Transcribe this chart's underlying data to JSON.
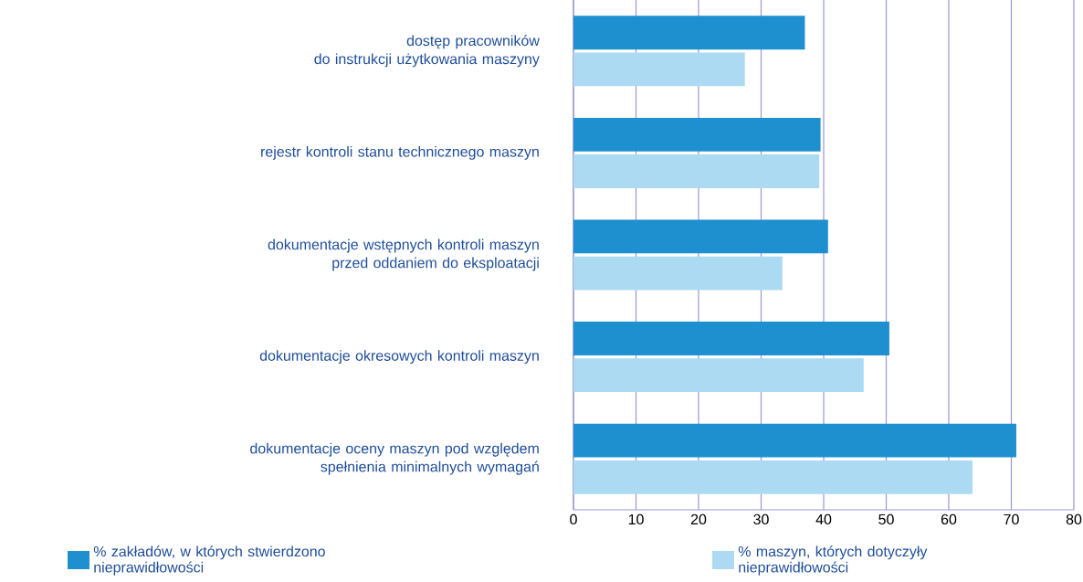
{
  "chart_data": {
    "type": "bar",
    "orientation": "horizontal",
    "categories": [
      "dostęp pracowników\ndo instrukcji użytkowania maszyny",
      "rejestr kontroli stanu technicznego maszyn",
      "dokumentacje wstępnych kontroli maszyn\nprzed oddaniem do eksploatacji",
      "dokumentacje okresowych kontroli maszyn",
      "dokumentacje oceny maszyn pod względem\nspełnienia minimalnych wymagań"
    ],
    "series": [
      {
        "name": "% zakładów, w których stwierdzono nieprawidłowości",
        "color": "#1e90d0",
        "values": [
          37,
          39.5,
          40.7,
          50.5,
          70.8
        ]
      },
      {
        "name": "% maszyn, których dotyczyły nieprawidłowości",
        "color": "#acdaf2",
        "values": [
          27.4,
          39.3,
          33.4,
          46.4,
          63.8
        ]
      }
    ],
    "xlim": [
      0,
      80
    ],
    "xticks": [
      0,
      10,
      20,
      30,
      40,
      50,
      60,
      70,
      80
    ],
    "grid": "x",
    "legend": "bottom"
  }
}
